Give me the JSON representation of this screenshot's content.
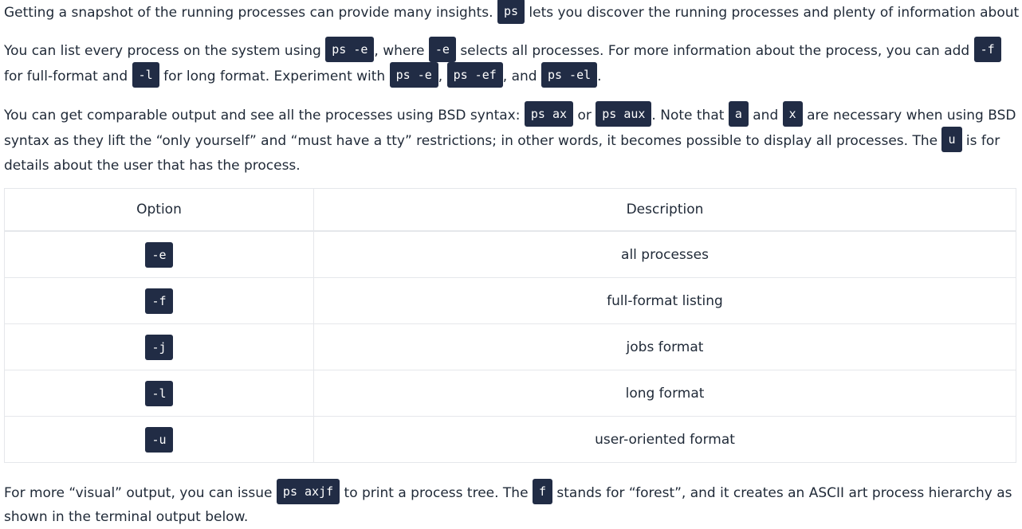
{
  "paragraph1": {
    "t1": "Getting a snapshot of the running processes can provide many insights.",
    "c1": "ps",
    "t2": "lets you discover the running processes and plenty of information about them."
  },
  "paragraph2": {
    "t1": "You can list every process on the system using",
    "c1": "ps -e",
    "t2": ", where",
    "c2": "-e",
    "t3": "selects all processes. For more information about the process, you can add",
    "c3": "-f",
    "t4": "for full-format and",
    "c4": "-l",
    "t5": "for long format. Experiment with",
    "c5": "ps -e",
    "t6": ",",
    "c6": "ps -ef",
    "t7": ", and",
    "c7": "ps -el",
    "t8": "."
  },
  "paragraph3": {
    "t1": "You can get comparable output and see all the processes using BSD syntax:",
    "c1": "ps ax",
    "t2": "or",
    "c2": "ps aux",
    "t3": ". Note that",
    "c3": "a",
    "t4": "and",
    "c4": "x",
    "t5": "are necessary when using BSD syntax as they lift the “only yourself” and “must have a tty” restrictions; in other words, it becomes possible to display all processes. The",
    "c5": "u",
    "t6": "is for details about the user that has the process."
  },
  "table": {
    "headers": [
      "Option",
      "Description"
    ],
    "rows": [
      {
        "option": "-e",
        "description": "all processes"
      },
      {
        "option": "-f",
        "description": "full-format listing"
      },
      {
        "option": "-j",
        "description": "jobs format"
      },
      {
        "option": "-l",
        "description": "long format"
      },
      {
        "option": "-u",
        "description": "user-oriented format"
      }
    ]
  },
  "paragraph4": {
    "t1": "For more “visual” output, you can issue",
    "c1": "ps axjf",
    "t2": "to print a process tree. The",
    "c2": "f",
    "t3": "stands for “forest”, and it creates an ASCII art process hierarchy as shown in the terminal output below."
  }
}
